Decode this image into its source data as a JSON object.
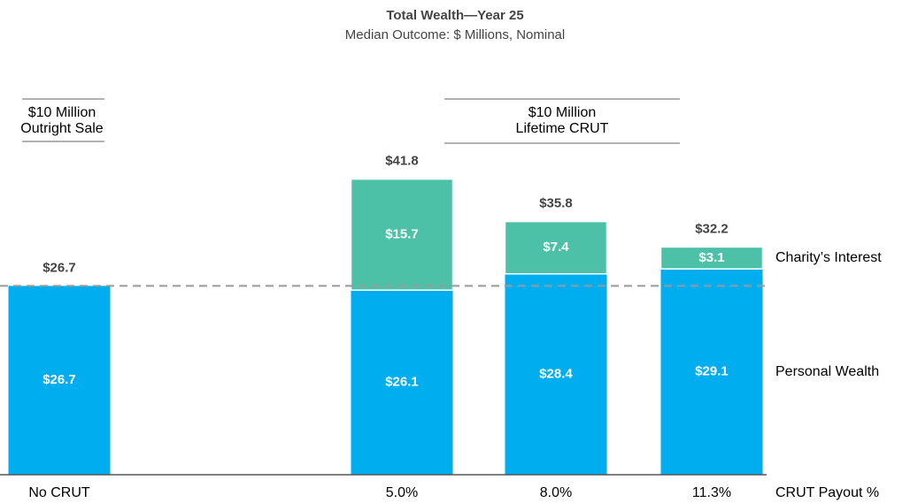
{
  "chart_data": {
    "type": "stacked_bar",
    "title": "Total Wealth—Year 25",
    "subtitle": "Median Outcome: $ Millions, Nominal",
    "categories": [
      "No CRUT",
      "5.0%",
      "8.0%",
      "11.3%"
    ],
    "x_axis_label": "CRUT Payout %",
    "groups": [
      {
        "lines": [
          "$10 Million",
          "Outright Sale"
        ]
      },
      {
        "lines": [
          "$10 Million",
          "Lifetime CRUT"
        ]
      }
    ],
    "series": [
      {
        "name": "Personal Wealth",
        "color": "#00aeef",
        "values": [
          26.7,
          26.1,
          28.4,
          29.1
        ],
        "value_labels": [
          "$26.7",
          "$26.1",
          "$28.4",
          "$29.1"
        ]
      },
      {
        "name": "Charity’s Interest",
        "color": "#4dc1a8",
        "values": [
          null,
          15.7,
          7.4,
          3.1
        ],
        "value_labels": [
          null,
          "$15.7",
          "$7.4",
          "$3.1"
        ]
      }
    ],
    "totals": [
      26.7,
      41.8,
      35.8,
      32.2
    ],
    "total_labels": [
      "$26.7",
      "$41.8",
      "$35.8",
      "$32.2"
    ],
    "reference_value": 26.7,
    "ylim": [
      0,
      45
    ]
  }
}
